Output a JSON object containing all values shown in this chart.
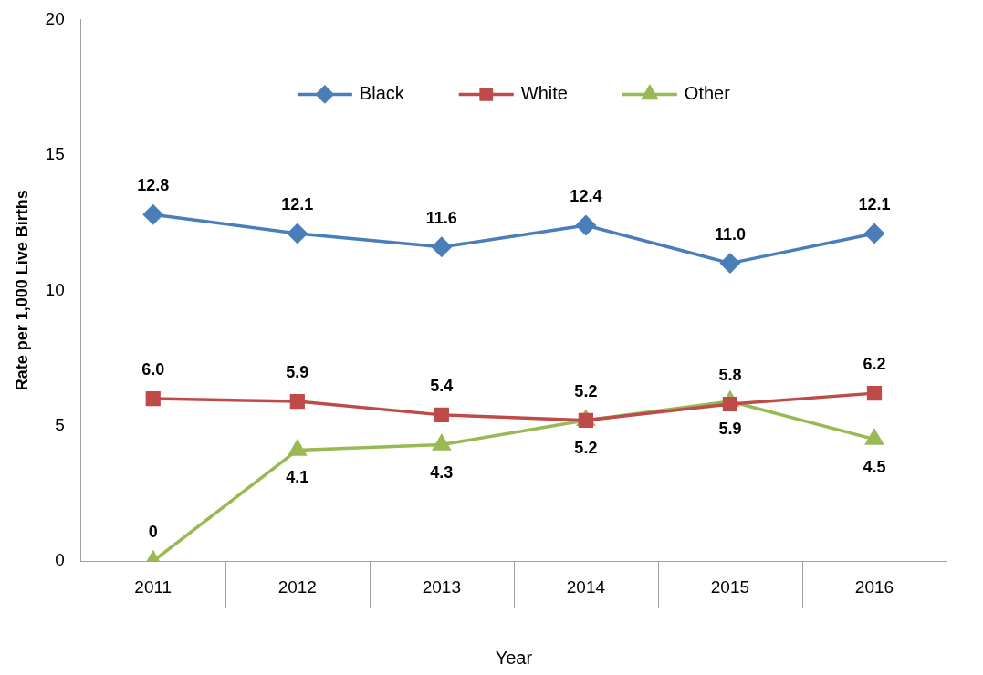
{
  "chart_data": {
    "type": "line",
    "xlabel": "Year",
    "ylabel": "Rate per 1,000 Live Births",
    "categories": [
      "2011",
      "2012",
      "2013",
      "2014",
      "2015",
      "2016"
    ],
    "series": [
      {
        "name": "Black",
        "color": "#4a7ebb",
        "marker": "diamond",
        "values": [
          12.8,
          12.1,
          11.6,
          12.4,
          11.0,
          12.1
        ],
        "value_labels": [
          "12.8",
          "12.1",
          "11.6",
          "12.4",
          "11.0",
          "12.1"
        ]
      },
      {
        "name": "White",
        "color": "#be4b48",
        "marker": "square",
        "values": [
          6.0,
          5.9,
          5.4,
          5.2,
          5.8,
          6.2
        ],
        "value_labels": [
          "6.0",
          "5.9",
          "5.4",
          "5.2",
          "5.8",
          "6.2"
        ]
      },
      {
        "name": "Other",
        "color": "#98b954",
        "marker": "triangle",
        "values": [
          0,
          4.1,
          4.3,
          5.2,
          5.9,
          4.5
        ],
        "value_labels": [
          "0",
          "4.1",
          "4.3",
          "5.2",
          "5.9",
          "4.5"
        ]
      }
    ],
    "ylim": [
      0,
      20
    ],
    "yticks": [
      0,
      5,
      10,
      15,
      20
    ],
    "grid": false,
    "legend": "top",
    "line_style": "solid"
  }
}
